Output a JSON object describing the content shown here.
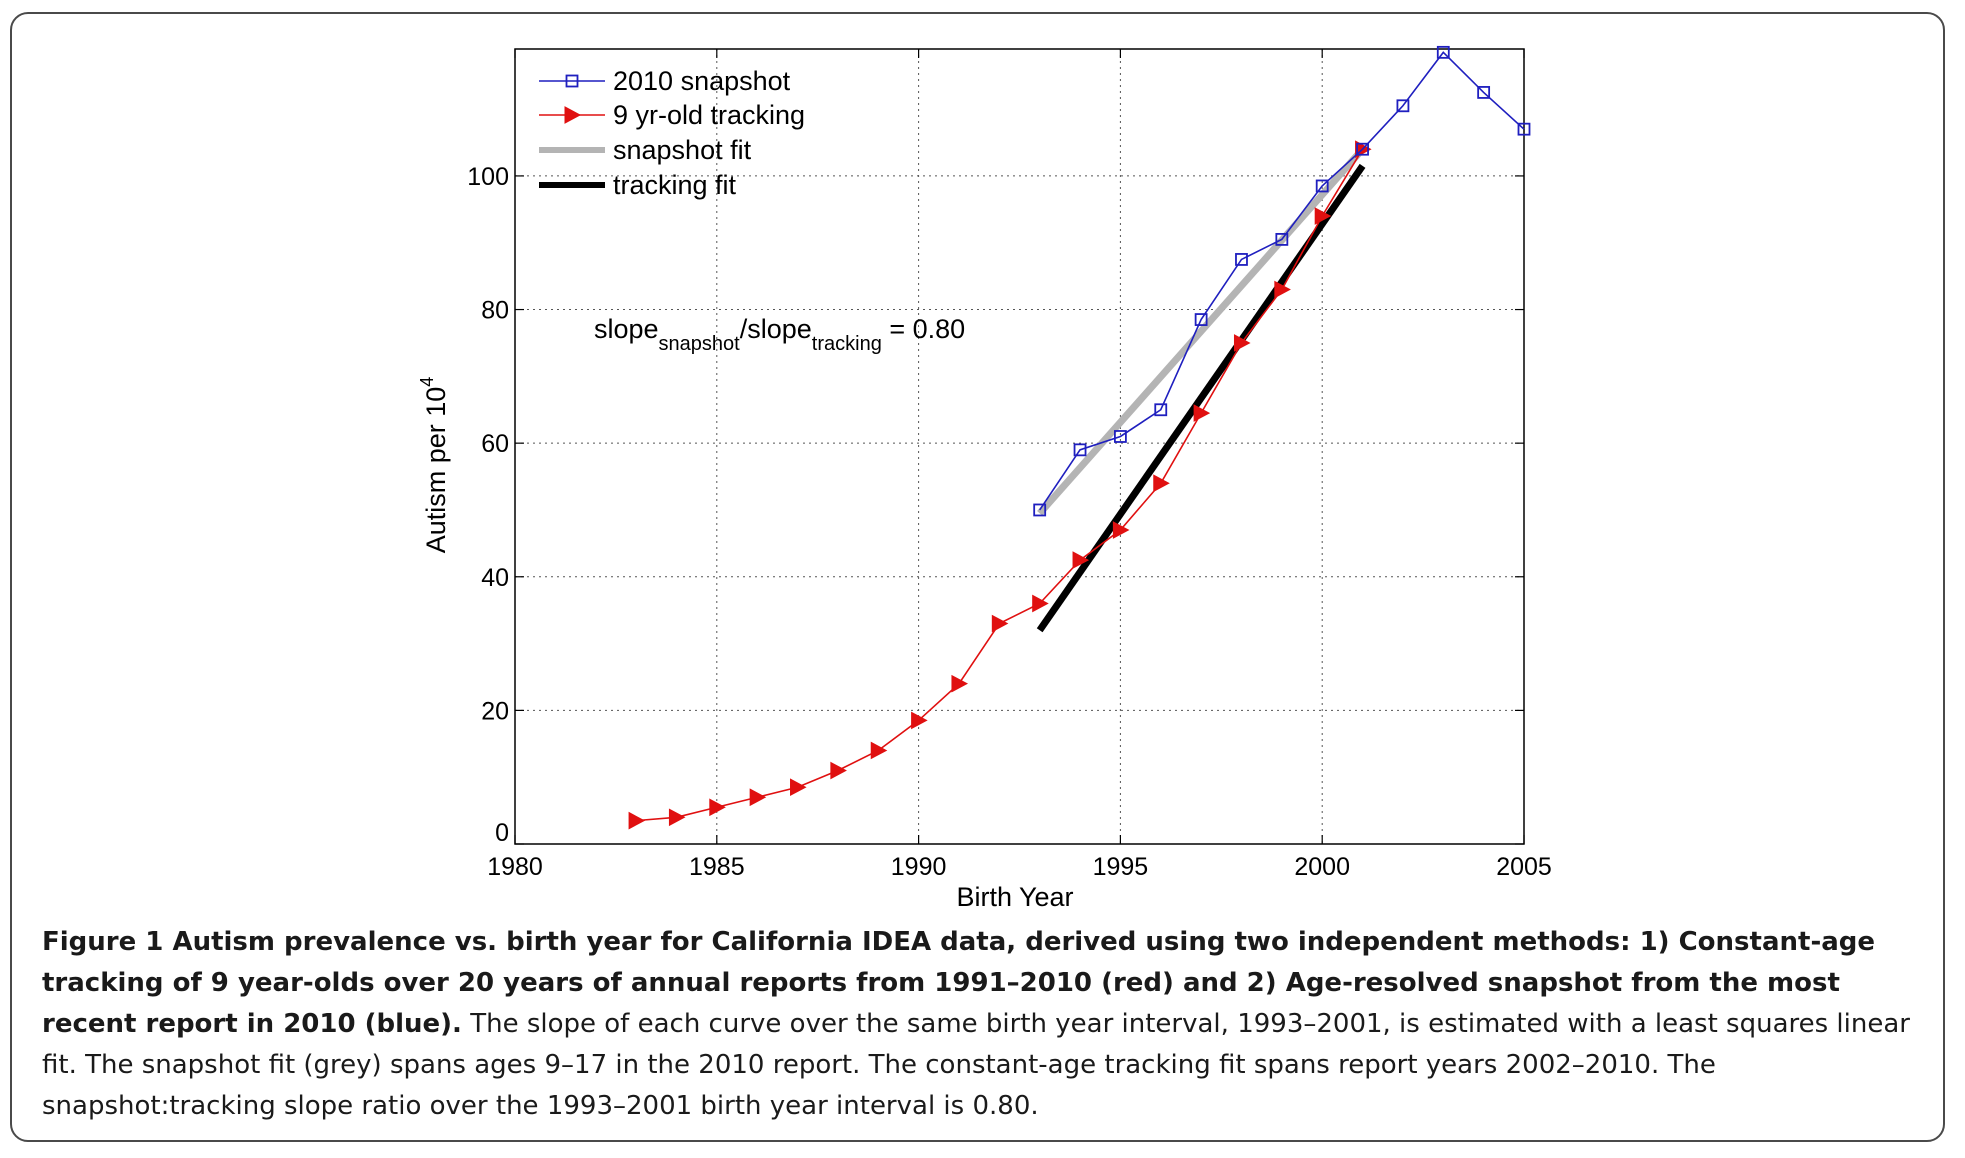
{
  "chart_data": {
    "type": "line",
    "xlabel": "Birth Year",
    "ylabel": "Autism per 10",
    "ylabel_sup": "4",
    "xlim": [
      1980,
      2005
    ],
    "ylim": [
      0,
      119
    ],
    "xticks": [
      1980,
      1985,
      1990,
      1995,
      2000,
      2005
    ],
    "yticks": [
      0,
      20,
      40,
      60,
      80,
      100
    ],
    "grid": true,
    "legend_position": "top-left",
    "series": [
      {
        "name": "2010 snapshot",
        "color": "#1f1fbf",
        "marker": "square",
        "x": [
          1993,
          1994,
          1995,
          1996,
          1997,
          1998,
          1999,
          2000,
          2001,
          2002,
          2003,
          2004,
          2005
        ],
        "y": [
          50,
          59,
          61,
          65,
          78.5,
          87.5,
          90.5,
          98.5,
          104,
          110.5,
          118.5,
          112.5,
          107
        ]
      },
      {
        "name": "9 yr-old tracking",
        "color": "#e01010",
        "marker": "triangle-right",
        "x": [
          1983,
          1984,
          1985,
          1986,
          1987,
          1988,
          1989,
          1990,
          1991,
          1992,
          1993,
          1994,
          1995,
          1996,
          1997,
          1998,
          1999,
          2000,
          2001
        ],
        "y": [
          3.5,
          4,
          5.5,
          7,
          8.5,
          11,
          14,
          18.5,
          24,
          33,
          36,
          42.5,
          47,
          54,
          64.5,
          75,
          83,
          94,
          104
        ]
      },
      {
        "name": "snapshot fit",
        "color": "#b4b4b4",
        "marker": "none",
        "x": [
          1993,
          2001
        ],
        "y": [
          49.5,
          104
        ]
      },
      {
        "name": "tracking fit",
        "color": "#000000",
        "marker": "none",
        "x": [
          1993,
          2001
        ],
        "y": [
          32,
          101.5
        ]
      }
    ],
    "annotation": {
      "parts": [
        {
          "text": "slope",
          "sub": false
        },
        {
          "text": "snapshot",
          "sub": true
        },
        {
          "text": "/slope",
          "sub": false
        },
        {
          "text": "tracking",
          "sub": true
        },
        {
          "text": " = 0.80",
          "sub": false
        }
      ]
    }
  },
  "caption": {
    "bold": "Figure 1 Autism prevalence vs. birth year for California IDEA data, derived using two independent methods: 1) Constant-age tracking of 9 year-olds over 20 years of annual reports from 1991–2010 (red) and 2) Age-resolved snapshot from the most recent report in 2010 (blue).",
    "regular": " The slope of each curve over the same birth year interval, 1993–2001, is estimated with a least squares linear fit. The snapshot fit (grey) spans ages 9–17 in the 2010 report. The constant-age tracking fit spans report years 2002–2010. The snapshot:tracking slope ratio over the 1993–2001 birth year interval is 0.80."
  }
}
